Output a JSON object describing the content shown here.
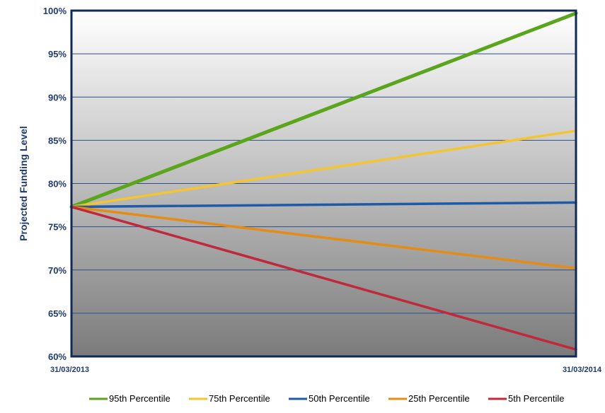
{
  "chart_data": {
    "type": "line",
    "title": "",
    "xlabel": "",
    "ylabel": "Projected Funding Level",
    "x": [
      "31/03/2013",
      "31/03/2014"
    ],
    "ylim": [
      0.6,
      1.0
    ],
    "yticks": [
      0.6,
      0.65,
      0.7,
      0.75,
      0.8,
      0.85,
      0.9,
      0.95,
      1.0
    ],
    "ytick_labels": [
      "60%",
      "65%",
      "70%",
      "75%",
      "80%",
      "85%",
      "90%",
      "95%",
      "100%"
    ],
    "grid": true,
    "legend_position": "bottom",
    "background": "gradient white to grey",
    "series": [
      {
        "name": "95th Percentile",
        "color": "#5aa51c",
        "values": [
          0.773,
          0.997
        ]
      },
      {
        "name": "75th Percentile",
        "color": "#f5c531",
        "values": [
          0.773,
          0.861
        ]
      },
      {
        "name": "50th Percentile",
        "color": "#1e5aa5",
        "values": [
          0.773,
          0.778
        ]
      },
      {
        "name": "25th Percentile",
        "color": "#e48c14",
        "values": [
          0.773,
          0.702
        ]
      },
      {
        "name": "5th Percentile",
        "color": "#c0283c",
        "values": [
          0.773,
          0.608
        ]
      }
    ]
  }
}
